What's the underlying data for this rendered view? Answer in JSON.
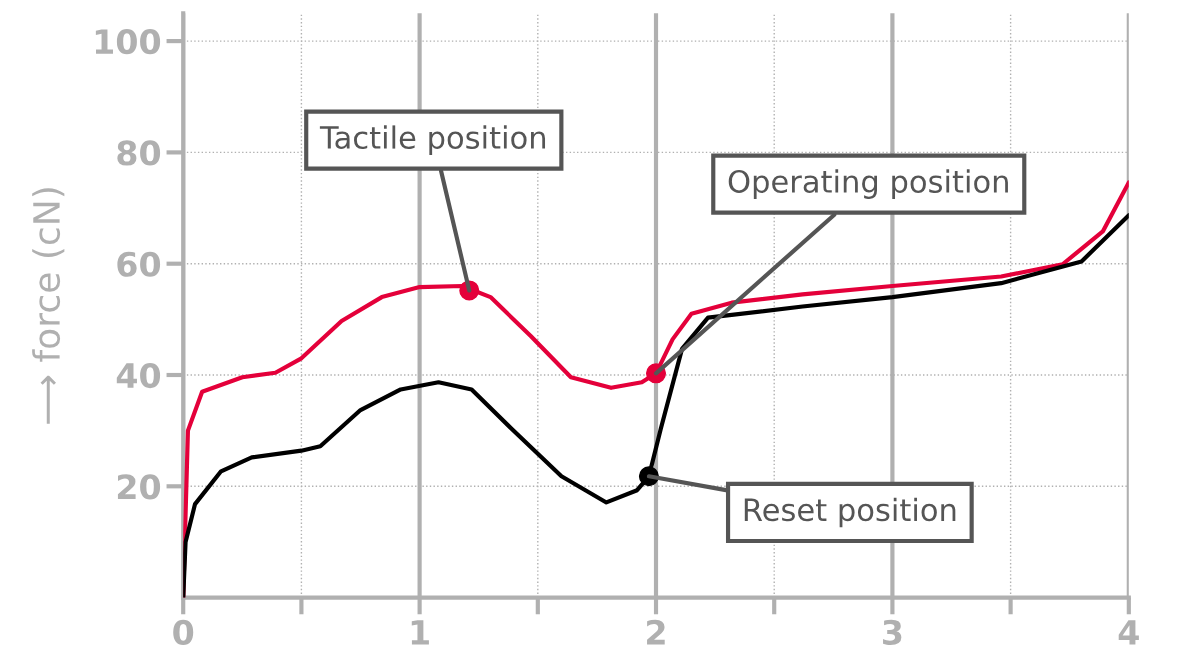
{
  "chart_data": {
    "type": "line",
    "ylabel": "⟶ force (cN)",
    "xlim": [
      0,
      4
    ],
    "ylim": [
      0,
      105
    ],
    "xticks": [
      0,
      {
        "value": 0.5,
        "label": null
      },
      1,
      {
        "value": 1.5,
        "label": null
      },
      2,
      {
        "value": 2.5,
        "label": null
      },
      3,
      {
        "value": 3.5,
        "label": null
      },
      4
    ],
    "yticks": [
      20,
      40,
      60,
      80,
      100
    ],
    "grid": true,
    "legend": false,
    "line_style": "solid",
    "series": [
      {
        "color": "#e4003a",
        "x": [
          0,
          0.02,
          0.08,
          0.25,
          0.39,
          0.5,
          0.67,
          0.84,
          1.0,
          1.18,
          1.3,
          1.47,
          1.64,
          1.81,
          1.94,
          2.0,
          2.07,
          2.15,
          2.32,
          2.62,
          3.0,
          3.46,
          3.72,
          3.89,
          4.0
        ],
        "values": [
          0,
          30,
          37,
          39.6,
          40.4,
          43,
          49.7,
          54,
          55.8,
          56,
          54,
          47,
          39.6,
          37.7,
          38.7,
          40.3,
          46.4,
          51,
          53,
          54.5,
          56,
          57.7,
          59.9,
          65.8,
          74.6
        ]
      },
      {
        "color": "#000000",
        "x": [
          0,
          0.01,
          0.05,
          0.16,
          0.29,
          0.5,
          0.58,
          0.75,
          0.92,
          1.08,
          1.22,
          1.39,
          1.6,
          1.79,
          1.92,
          1.97,
          2.02,
          2.11,
          2.22,
          2.62,
          3.0,
          3.46,
          3.8,
          4.0
        ],
        "values": [
          0,
          10,
          16.8,
          22.7,
          25.2,
          26.4,
          27.2,
          33.7,
          37.4,
          38.7,
          37.4,
          30.3,
          21.8,
          17.1,
          19.3,
          21.8,
          30.3,
          44.7,
          50.3,
          52.3,
          54,
          56.5,
          60.4,
          68.7
        ]
      },
      {
        "type": "scatter",
        "marker": "circle",
        "color": "#e4003a",
        "x": [
          1.21,
          2.0
        ],
        "values": [
          55.2,
          40.3
        ]
      },
      {
        "type": "scatter",
        "marker": "circle",
        "color": "#000000",
        "x": [
          1.97
        ],
        "values": [
          21.8
        ]
      }
    ],
    "annotations": [
      {
        "text": "Tactile position",
        "x": 1.21,
        "y": 55.2
      },
      {
        "text": "Operating position",
        "x": 2.0,
        "y": 40.3
      },
      {
        "text": "Reset position",
        "x": 1.97,
        "y": 21.8
      }
    ]
  }
}
